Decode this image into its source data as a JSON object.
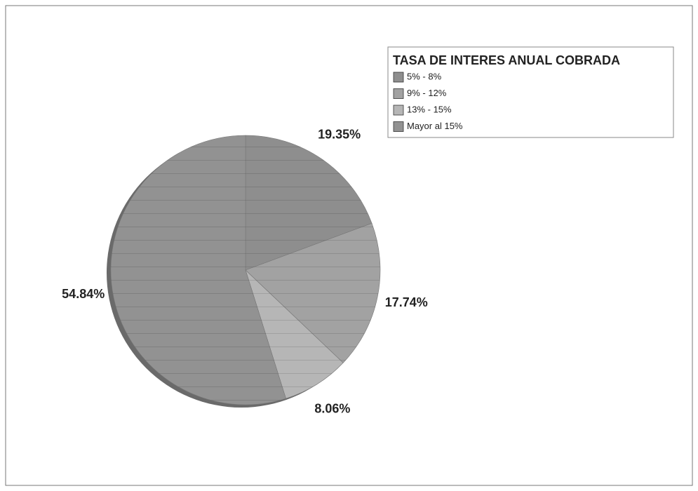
{
  "chart_data": {
    "type": "pie",
    "legend_title": "TASA DE INTERES ANUAL COBRADA",
    "categories": [
      "5% - 8%",
      "9% - 12%",
      "13% - 15%",
      "Mayor al 15%"
    ],
    "values": [
      19.35,
      17.74,
      8.06,
      54.84
    ],
    "value_labels": [
      "19.35%",
      "17.74%",
      "8.06%",
      "54.84%"
    ],
    "colors": [
      "#8e8e8e",
      "#a2a2a2",
      "#b6b6b6",
      "#929292"
    ],
    "legend": "upper right"
  }
}
